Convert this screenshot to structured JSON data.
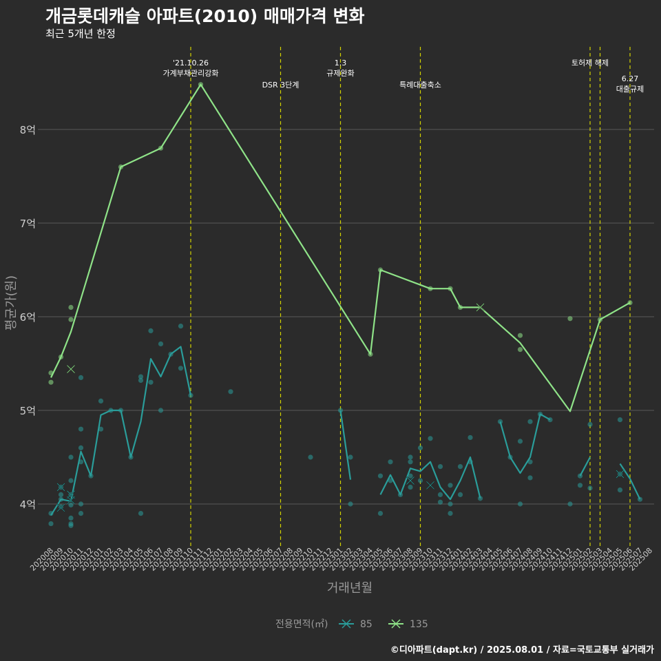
{
  "title": "개금롯데캐슬 아파트(2010) 매매가격 변화",
  "subtitle": "최근 5개년 한정",
  "caption": "©디아파트(dapt.kr) / 2025.08.01 / 자료=국토교통부 실거래가",
  "colors": {
    "background": "#2b2b2b",
    "grid": "#5a5a5a",
    "event_line": "#d4d400",
    "series_85": "#2a9d9a",
    "series_135": "#8fe388",
    "axis_title": "#9a9a9a"
  },
  "chart_data": {
    "type": "line",
    "xlabel": "거래년월",
    "ylabel": "평균가(원)",
    "x": [
      "202008",
      "202009",
      "202010",
      "202011",
      "202012",
      "202101",
      "202102",
      "202103",
      "202104",
      "202105",
      "202106",
      "202107",
      "202108",
      "202109",
      "202110",
      "202111",
      "202112",
      "202201",
      "202202",
      "202203",
      "202204",
      "202205",
      "202206",
      "202207",
      "202208",
      "202209",
      "202210",
      "202211",
      "202212",
      "202301",
      "202302",
      "202303",
      "202304",
      "202305",
      "202306",
      "202307",
      "202308",
      "202309",
      "202310",
      "202311",
      "202312",
      "202401",
      "202402",
      "202403",
      "202404",
      "202405",
      "202406",
      "202407",
      "202408",
      "202409",
      "202410",
      "202411",
      "202412",
      "202501",
      "202502",
      "202503",
      "202504",
      "202505",
      "202506",
      "202507",
      "202508"
    ],
    "ylim": [
      3.55,
      8.9
    ],
    "yticks": [
      4,
      5,
      6,
      7,
      8
    ],
    "ytick_labels": [
      "4억",
      "5억",
      "6억",
      "7억",
      "8억"
    ],
    "grid": true,
    "legend": {
      "title": "전용면적(㎡)",
      "position": "bottom"
    },
    "series": [
      {
        "name": "85",
        "color": "#2a9d9a",
        "line_segments": [
          [
            [
              "202008",
              3.88
            ],
            [
              "202009",
              4.05
            ],
            [
              "202010",
              4.03
            ],
            [
              "202011",
              4.56
            ],
            [
              "202012",
              4.3
            ],
            [
              "202101",
              4.95
            ],
            [
              "202102",
              5.0
            ],
            [
              "202103",
              5.0
            ],
            [
              "202104",
              4.5
            ],
            [
              "202105",
              4.88
            ],
            [
              "202106",
              5.55
            ],
            [
              "202107",
              5.36
            ],
            [
              "202108",
              5.6
            ],
            [
              "202109",
              5.68
            ],
            [
              "202110",
              5.16
            ]
          ],
          [
            [
              "202301",
              5.0
            ],
            [
              "202302",
              4.26
            ]
          ],
          [
            [
              "202305",
              4.1
            ],
            [
              "202306",
              4.31
            ],
            [
              "202307",
              4.1
            ],
            [
              "202308",
              4.38
            ],
            [
              "202309",
              4.35
            ],
            [
              "202310",
              4.45
            ],
            [
              "202311",
              4.18
            ],
            [
              "202312",
              4.05
            ],
            [
              "202401",
              4.25
            ],
            [
              "202402",
              4.5
            ],
            [
              "202403",
              4.06
            ]
          ],
          [
            [
              "202405",
              4.88
            ],
            [
              "202406",
              4.5
            ],
            [
              "202407",
              4.33
            ],
            [
              "202408",
              4.5
            ],
            [
              "202409",
              4.96
            ],
            [
              "202410",
              4.9
            ]
          ],
          [
            [
              "202501",
              4.3
            ],
            [
              "202502",
              4.5
            ]
          ],
          [
            [
              "202505",
              4.43
            ],
            [
              "202506",
              4.27
            ],
            [
              "202507",
              4.05
            ]
          ]
        ],
        "points": [
          [
            "202008",
            3.9
          ],
          [
            "202008",
            3.79
          ],
          [
            "202009",
            4.18
          ],
          [
            "202009",
            4.1
          ],
          [
            "202009",
            4.05
          ],
          [
            "202009",
            3.97
          ],
          [
            "202010",
            4.5
          ],
          [
            "202010",
            4.25
          ],
          [
            "202010",
            4.1
          ],
          [
            "202010",
            3.99
          ],
          [
            "202010",
            3.85
          ],
          [
            "202010",
            3.79
          ],
          [
            "202010",
            3.77
          ],
          [
            "202011",
            5.35
          ],
          [
            "202011",
            4.8
          ],
          [
            "202011",
            4.6
          ],
          [
            "202011",
            4.45
          ],
          [
            "202011",
            4.0
          ],
          [
            "202011",
            3.9
          ],
          [
            "202012",
            4.3
          ],
          [
            "202101",
            5.1
          ],
          [
            "202101",
            4.8
          ],
          [
            "202102",
            5.0
          ],
          [
            "202103",
            5.0
          ],
          [
            "202104",
            4.5
          ],
          [
            "202105",
            5.36
          ],
          [
            "202105",
            5.32
          ],
          [
            "202105",
            3.9
          ],
          [
            "202106",
            5.85
          ],
          [
            "202106",
            5.3
          ],
          [
            "202107",
            5.71
          ],
          [
            "202107",
            5.0
          ],
          [
            "202108",
            5.6
          ],
          [
            "202109",
            5.9
          ],
          [
            "202109",
            5.45
          ],
          [
            "202110",
            5.16
          ],
          [
            "202202",
            5.2
          ],
          [
            "202210",
            4.5
          ],
          [
            "202301",
            5.0
          ],
          [
            "202302",
            4.5
          ],
          [
            "202302",
            4.0
          ],
          [
            "202305",
            4.3
          ],
          [
            "202305",
            3.9
          ],
          [
            "202306",
            4.45
          ],
          [
            "202306",
            4.25
          ],
          [
            "202307",
            4.1
          ],
          [
            "202308",
            4.5
          ],
          [
            "202308",
            4.45
          ],
          [
            "202308",
            4.3
          ],
          [
            "202308",
            4.18
          ],
          [
            "202309",
            4.6
          ],
          [
            "202309",
            4.25
          ],
          [
            "202310",
            4.7
          ],
          [
            "202311",
            4.4
          ],
          [
            "202311",
            4.1
          ],
          [
            "202311",
            4.02
          ],
          [
            "202312",
            4.2
          ],
          [
            "202312",
            4.0
          ],
          [
            "202312",
            3.9
          ],
          [
            "202401",
            4.4
          ],
          [
            "202401",
            4.1
          ],
          [
            "202402",
            4.71
          ],
          [
            "202402",
            4.45
          ],
          [
            "202403",
            4.06
          ],
          [
            "202405",
            4.88
          ],
          [
            "202406",
            4.5
          ],
          [
            "202407",
            4.67
          ],
          [
            "202407",
            4.0
          ],
          [
            "202408",
            4.88
          ],
          [
            "202408",
            4.45
          ],
          [
            "202408",
            4.28
          ],
          [
            "202409",
            4.96
          ],
          [
            "202410",
            4.9
          ],
          [
            "202412",
            4.0
          ],
          [
            "202501",
            4.3
          ],
          [
            "202501",
            4.2
          ],
          [
            "202502",
            4.85
          ],
          [
            "202502",
            4.17
          ],
          [
            "202505",
            4.9
          ],
          [
            "202505",
            4.32
          ],
          [
            "202505",
            4.15
          ],
          [
            "202507",
            4.05
          ]
        ],
        "markers_x": [
          [
            "202009",
            4.18
          ],
          [
            "202009",
            3.96
          ],
          [
            "202010",
            4.1
          ],
          [
            "202010",
            4.04
          ],
          [
            "202308",
            4.25
          ],
          [
            "202310",
            4.2
          ],
          [
            "202505",
            4.32
          ]
        ]
      },
      {
        "name": "135",
        "color": "#8fe388",
        "line_segments": [
          [
            [
              "202008",
              5.35
            ],
            [
              "202009",
              5.57
            ],
            [
              "202010",
              5.84
            ],
            [
              "202103",
              7.6
            ],
            [
              "202107",
              7.8
            ],
            [
              "202111",
              8.48
            ],
            [
              "202304",
              5.6
            ],
            [
              "202305",
              6.5
            ],
            [
              "202310",
              6.3
            ],
            [
              "202312",
              6.3
            ],
            [
              "202401",
              6.1
            ],
            [
              "202403",
              6.1
            ],
            [
              "202407",
              5.72
            ],
            [
              "202412",
              4.99
            ],
            [
              "202503",
              5.97
            ],
            [
              "202506",
              6.15
            ]
          ]
        ],
        "points": [
          [
            "202008",
            5.4
          ],
          [
            "202008",
            5.3
          ],
          [
            "202009",
            5.57
          ],
          [
            "202010",
            6.1
          ],
          [
            "202010",
            5.97
          ],
          [
            "202103",
            7.6
          ],
          [
            "202107",
            7.8
          ],
          [
            "202111",
            8.48
          ],
          [
            "202304",
            5.6
          ],
          [
            "202305",
            6.5
          ],
          [
            "202310",
            6.3
          ],
          [
            "202312",
            6.3
          ],
          [
            "202401",
            6.1
          ],
          [
            "202407",
            5.8
          ],
          [
            "202407",
            5.65
          ],
          [
            "202412",
            5.98
          ],
          [
            "202503",
            5.97
          ],
          [
            "202506",
            6.15
          ]
        ],
        "markers_x": [
          [
            "202010",
            5.44
          ],
          [
            "202403",
            6.1
          ]
        ]
      }
    ],
    "events": [
      {
        "x": "202110",
        "lines": [
          "'21.10.26",
          "가계부채관리강화"
        ],
        "tier": 1
      },
      {
        "x": "202207",
        "lines": [
          "DSR 3단계"
        ],
        "tier": 2
      },
      {
        "x": "202301",
        "lines": [
          "1.3",
          "규제완화"
        ],
        "tier": 1
      },
      {
        "x": "202309",
        "lines": [
          "특례대출축소"
        ],
        "tier": 2
      },
      {
        "x": "202502",
        "lines": [
          "토허제 해제"
        ],
        "tier": 1
      },
      {
        "x": "202503",
        "lines": [],
        "tier": 1
      },
      {
        "x": "202506",
        "lines": [
          "6.27",
          "대출규제"
        ],
        "tier": 3
      }
    ]
  }
}
